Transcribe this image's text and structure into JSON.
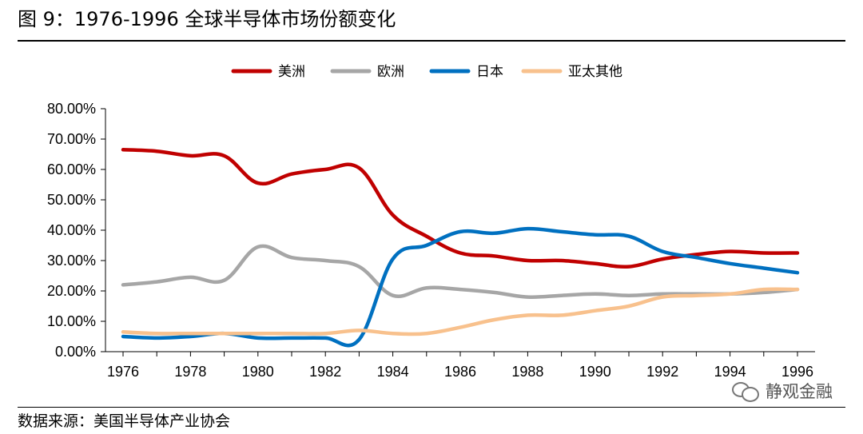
{
  "figure": {
    "title": "图 9：1976-1996 全球半导体市场份额变化",
    "source": "数据来源：美国半导体产业协会",
    "watermark": "静观金融"
  },
  "chart_data": {
    "type": "line",
    "title": "",
    "xlabel": "",
    "ylabel": "",
    "x": [
      1976,
      1977,
      1978,
      1979,
      1980,
      1981,
      1982,
      1983,
      1984,
      1985,
      1986,
      1987,
      1988,
      1989,
      1990,
      1991,
      1992,
      1993,
      1994,
      1995,
      1996
    ],
    "xticks": [
      1976,
      1978,
      1980,
      1982,
      1984,
      1986,
      1988,
      1990,
      1992,
      1994,
      1996
    ],
    "xtick_labels": [
      "1976",
      "1978",
      "1980",
      "1982",
      "1984",
      "1986",
      "1988",
      "1990",
      "1992",
      "1994",
      "1996"
    ],
    "yticks": [
      0,
      10,
      20,
      30,
      40,
      50,
      60,
      70,
      80
    ],
    "ytick_labels": [
      "0.00%",
      "10.00%",
      "20.00%",
      "30.00%",
      "40.00%",
      "50.00%",
      "60.00%",
      "70.00%",
      "80.00%"
    ],
    "ylim": [
      0,
      80
    ],
    "grid": false,
    "legend_position": "top",
    "series": [
      {
        "name": "美洲",
        "color": "#c00000",
        "values": [
          66.5,
          66.0,
          64.5,
          64.5,
          55.5,
          58.5,
          60.0,
          60.5,
          45.0,
          38.0,
          32.5,
          31.5,
          30.0,
          30.0,
          29.0,
          28.0,
          30.5,
          32.0,
          33.0,
          32.5,
          32.5
        ]
      },
      {
        "name": "欧洲",
        "color": "#a6a6a6",
        "values": [
          22.0,
          23.0,
          24.5,
          23.5,
          34.5,
          31.0,
          30.0,
          28.0,
          18.5,
          21.0,
          20.5,
          19.5,
          18.0,
          18.5,
          19.0,
          18.5,
          19.0,
          19.0,
          19.0,
          19.5,
          20.5
        ]
      },
      {
        "name": "日本",
        "color": "#0070c0",
        "values": [
          5.0,
          4.5,
          5.0,
          6.0,
          4.5,
          4.5,
          4.5,
          4.0,
          30.5,
          35.0,
          39.5,
          39.0,
          40.5,
          39.5,
          38.5,
          38.0,
          33.0,
          31.0,
          29.0,
          27.5,
          26.0
        ]
      },
      {
        "name": "亚太其他",
        "color": "#f8c18d",
        "values": [
          6.5,
          6.0,
          6.0,
          6.0,
          6.0,
          6.0,
          6.0,
          7.0,
          6.0,
          6.0,
          8.0,
          10.5,
          12.0,
          12.0,
          13.5,
          15.0,
          18.0,
          18.5,
          19.0,
          20.5,
          20.5
        ]
      }
    ]
  }
}
